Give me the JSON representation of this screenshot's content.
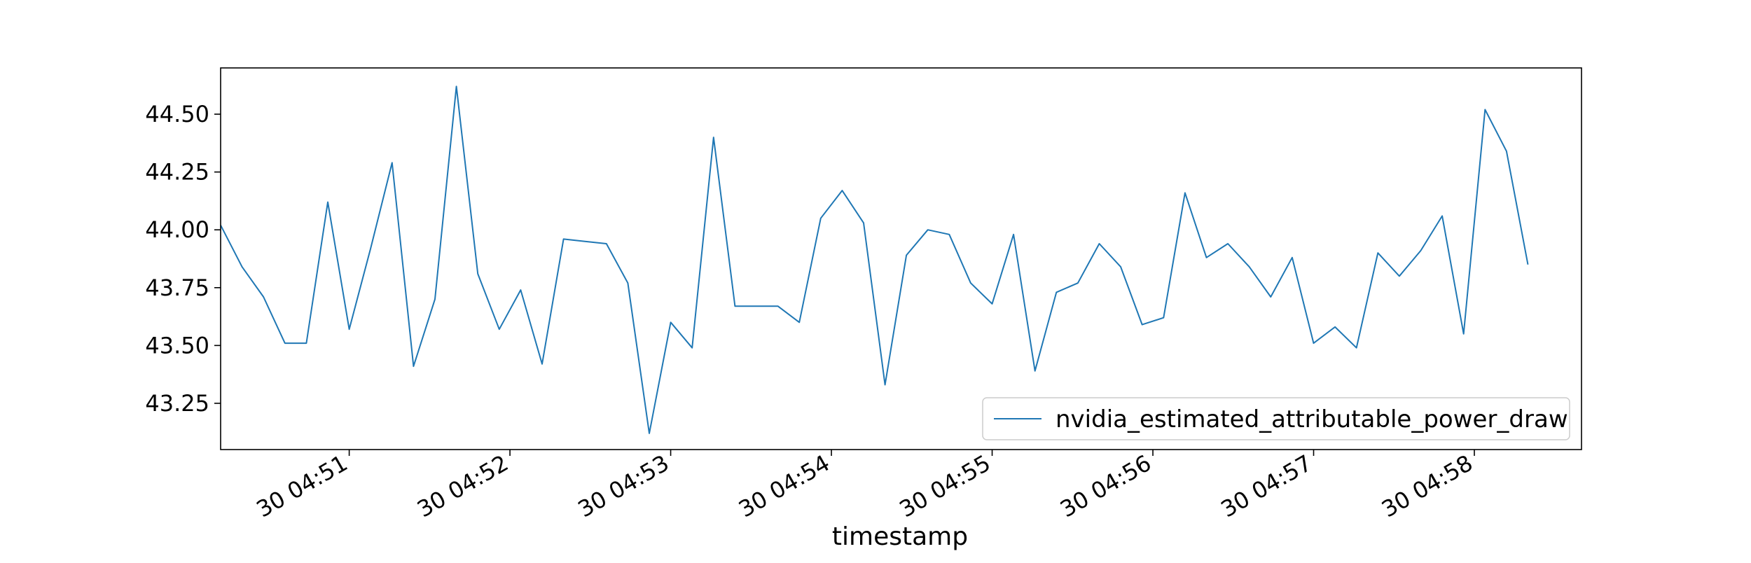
{
  "chart_data": {
    "type": "line",
    "title": "",
    "xlabel": "timestamp",
    "ylabel": "",
    "x_tick_labels": [
      "30 04:51",
      "30 04:52",
      "30 04:53",
      "30 04:54",
      "30 04:55",
      "30 04:56",
      "30 04:57",
      "30 04:58"
    ],
    "y_tick_labels": [
      "43.25",
      "43.50",
      "43.75",
      "44.00",
      "44.25",
      "44.50"
    ],
    "x_start_time": "04:50:12",
    "x_end_time": "04:58:40",
    "x_step_seconds": 8,
    "ylim": [
      43.05,
      44.7
    ],
    "grid": false,
    "legend_position": "lower-right",
    "series_color": "#1f77b4",
    "series": [
      {
        "name": "nvidia_estimated_attributable_power_draw",
        "values": [
          44.02,
          43.84,
          43.71,
          43.51,
          43.51,
          44.12,
          43.57,
          43.92,
          44.29,
          43.41,
          43.7,
          44.62,
          43.81,
          43.57,
          43.74,
          43.42,
          43.96,
          43.95,
          43.94,
          43.77,
          43.12,
          43.6,
          43.49,
          44.4,
          43.67,
          43.67,
          43.67,
          43.6,
          44.05,
          44.17,
          44.03,
          43.33,
          43.89,
          44.0,
          43.98,
          43.77,
          43.68,
          43.98,
          43.39,
          43.73,
          43.77,
          43.94,
          43.84,
          43.59,
          43.62,
          44.16,
          43.88,
          43.94,
          43.84,
          43.71,
          43.88,
          43.51,
          43.58,
          43.49,
          43.9,
          43.8,
          43.91,
          44.06,
          43.55,
          44.52,
          44.34,
          43.85
        ]
      }
    ]
  }
}
